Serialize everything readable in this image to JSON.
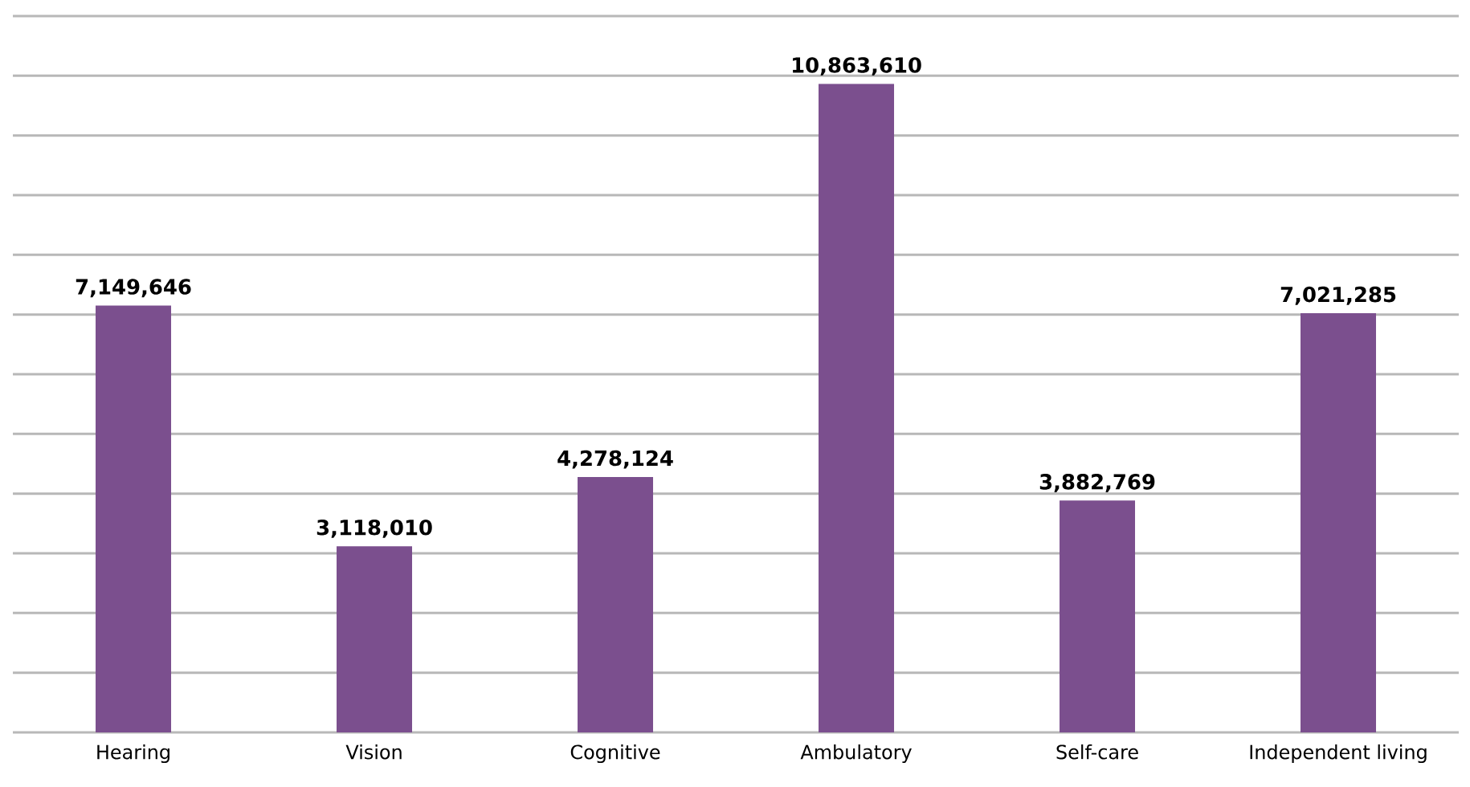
{
  "chart_data": {
    "type": "bar",
    "categories": [
      "Hearing",
      "Vision",
      "Cognitive",
      "Ambulatory",
      "Self-care",
      "Independent living"
    ],
    "values": [
      7149646,
      3118010,
      4278124,
      10863610,
      3882769,
      7021285
    ],
    "value_labels": [
      "7,149,646",
      "3,118,010",
      "4,278,124",
      "10,863,610",
      "3,882,769",
      "7,021,285"
    ],
    "color": "#7b4f8e",
    "ylim": [
      0,
      12000000
    ],
    "tick_labels": "x",
    "grid": "y"
  }
}
